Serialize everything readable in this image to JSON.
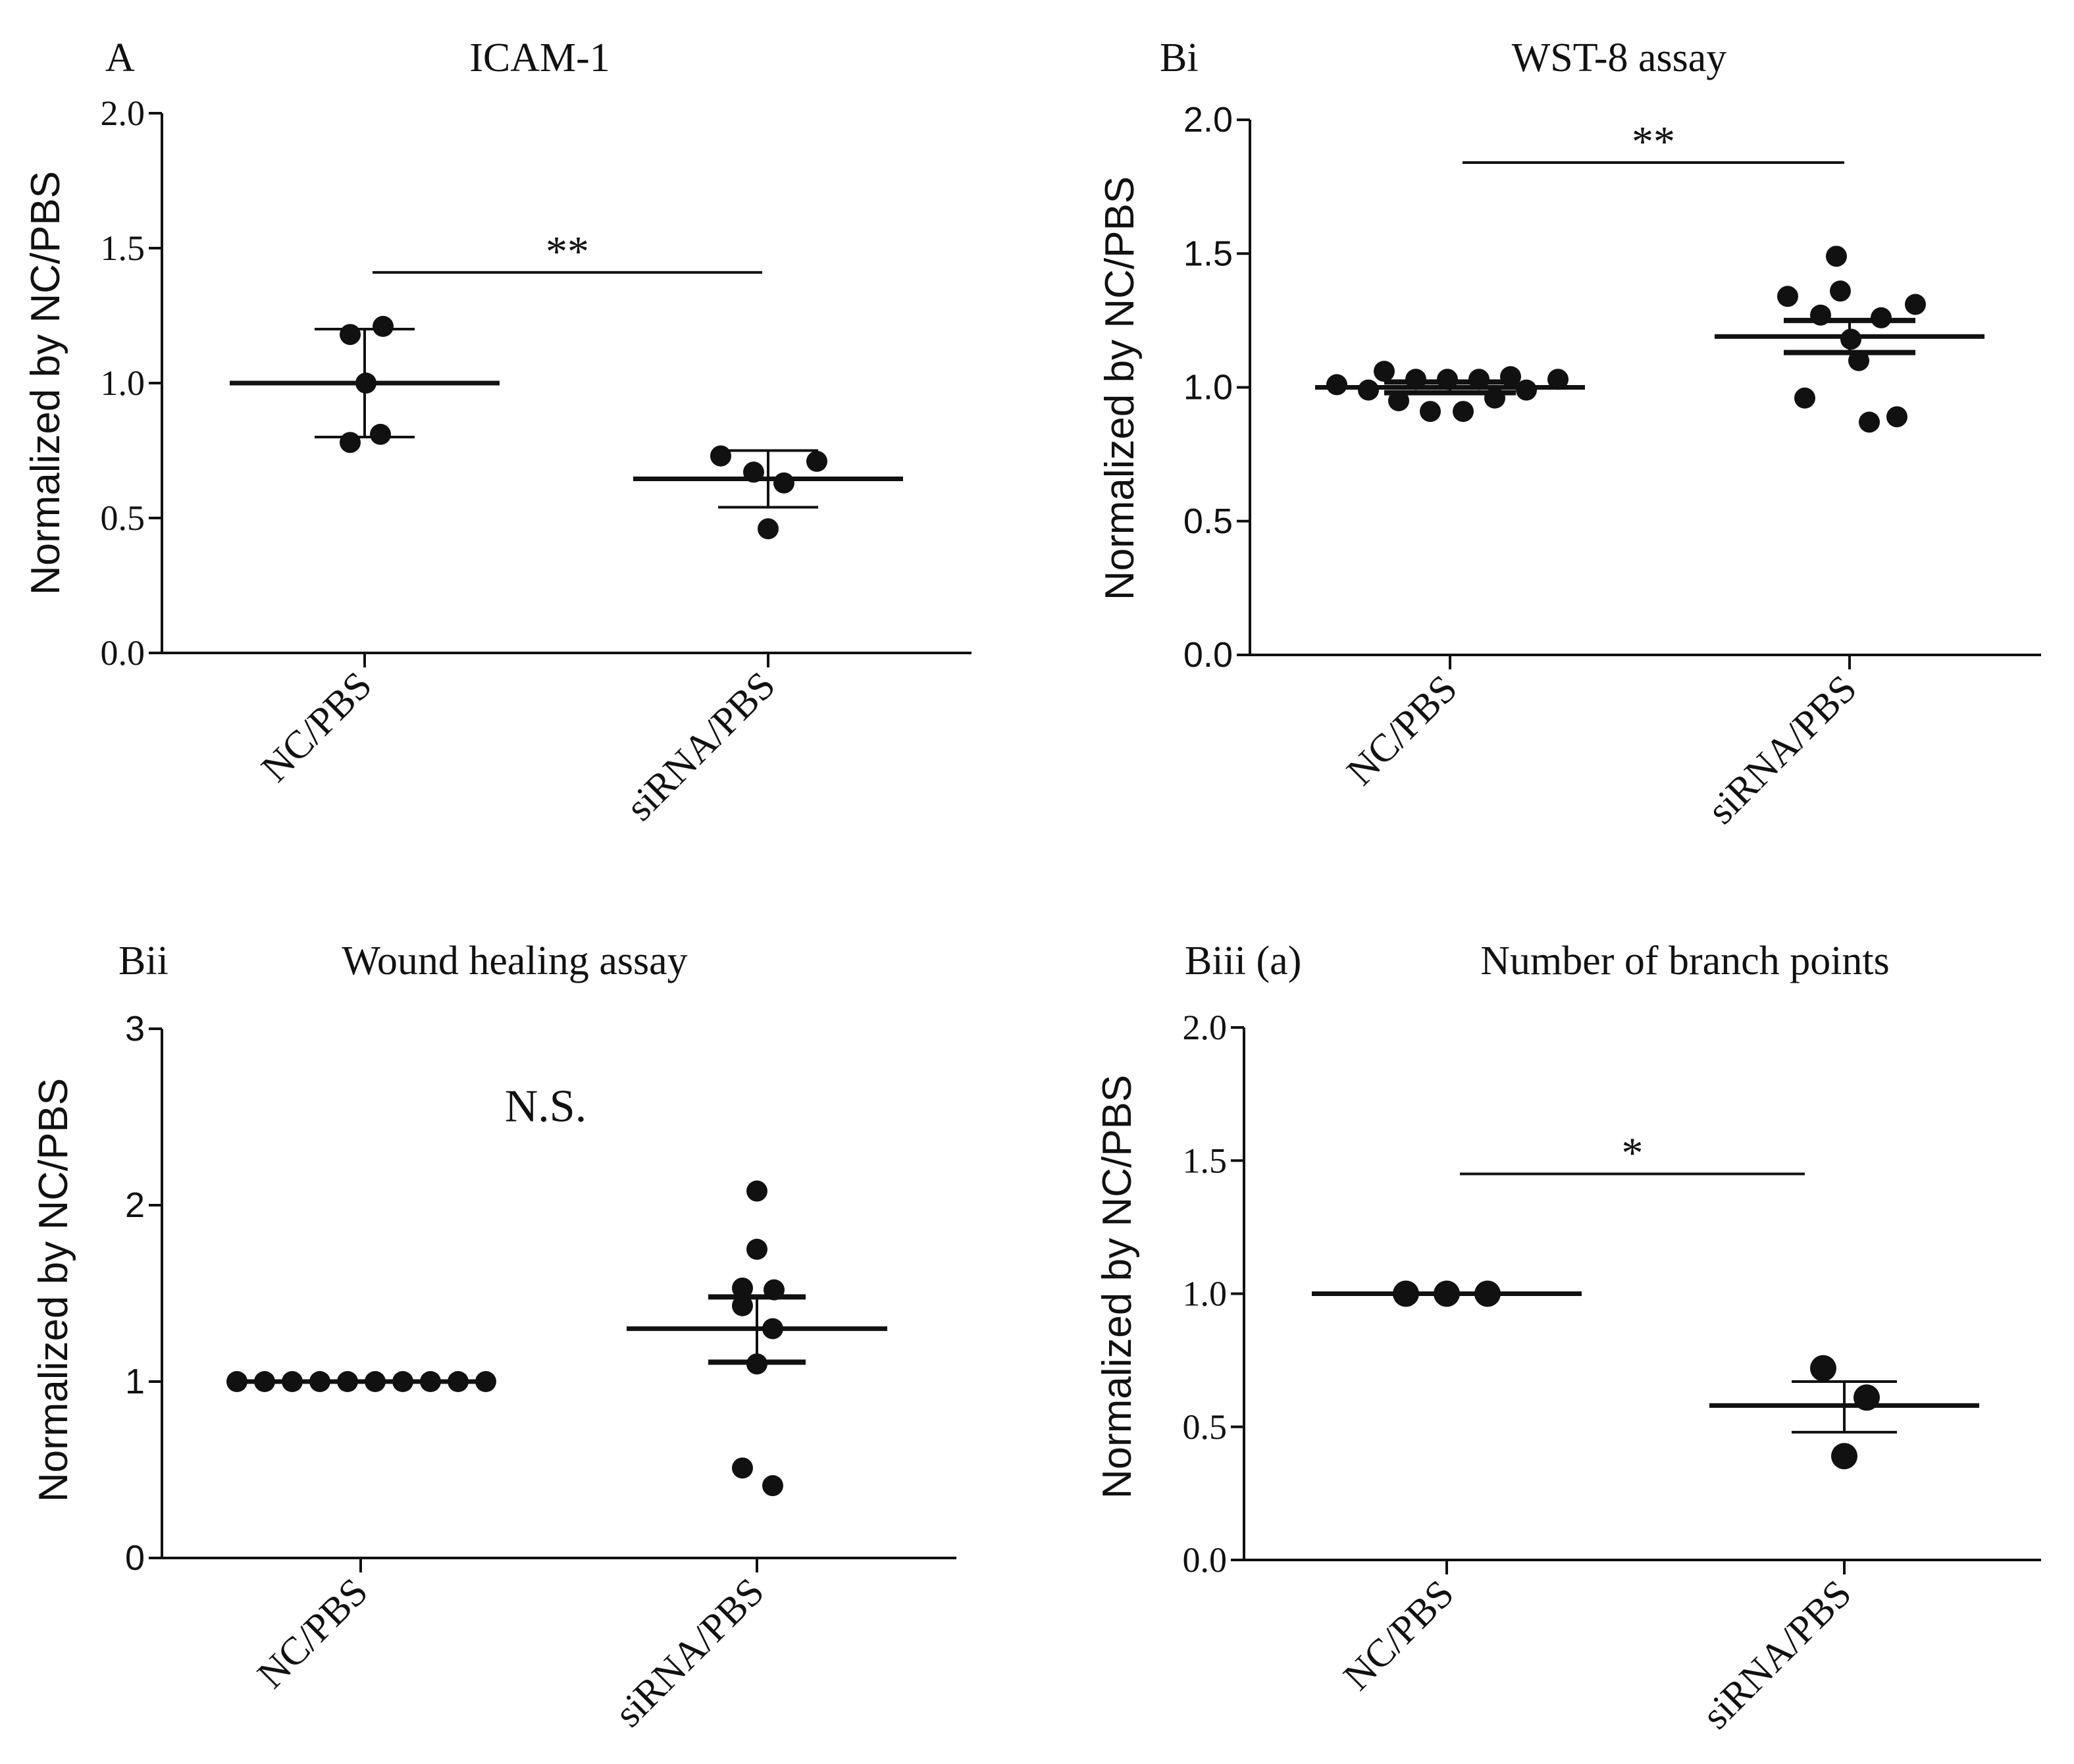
{
  "chart_data": [
    {
      "type": "scatter",
      "panel_label": "A",
      "title": "ICAM-1",
      "ylabel": "Normalized by NC/PBS",
      "ylim": [
        0,
        2.0
      ],
      "yticks": [
        0.0,
        0.5,
        1.0,
        1.5,
        2.0
      ],
      "ytick_labels": [
        "0.0",
        "0.5",
        "1.0",
        "1.5",
        "2.0"
      ],
      "tick_font": "serif",
      "categories": [
        "NC/PBS",
        "siRNA/PBS"
      ],
      "groups": [
        {
          "name": "NC/PBS",
          "points": [
            1.18,
            1.21,
            1.0,
            0.81,
            0.78
          ],
          "center": 1.0,
          "error": [
            0.8,
            1.2
          ],
          "error_kind": "SD"
        },
        {
          "name": "siRNA/PBS",
          "points": [
            0.73,
            0.67,
            0.63,
            0.71,
            0.46
          ],
          "center": 0.645,
          "error": [
            0.54,
            0.75
          ],
          "error_kind": "SD"
        }
      ],
      "significance": {
        "label": "**",
        "y": 1.41
      }
    },
    {
      "type": "scatter",
      "panel_label": "Bi",
      "title": "WST-8 assay",
      "ylabel": "Normalized by NC/PBS",
      "ylim": [
        0,
        2.0
      ],
      "yticks": [
        0.0,
        0.5,
        1.0,
        1.5,
        2.0
      ],
      "ytick_labels": [
        "0.0",
        "0.5",
        "1.0",
        "1.5",
        "2.0"
      ],
      "tick_font": "sans",
      "categories": [
        "NC/PBS",
        "siRNA/PBS"
      ],
      "groups": [
        {
          "name": "NC/PBS",
          "points": [
            1.01,
            0.99,
            1.06,
            0.95,
            1.03,
            0.91,
            1.03,
            0.91,
            1.03,
            0.96,
            1.04,
            0.99,
            1.03
          ],
          "center": 1.0,
          "error": [
            0.98,
            1.02
          ],
          "error_kind": "SEM"
        },
        {
          "name": "siRNA/PBS",
          "points": [
            1.34,
            0.96,
            1.27,
            1.49,
            1.36,
            1.18,
            1.1,
            0.87,
            1.26,
            0.89,
            1.31
          ],
          "center": 1.19,
          "error": [
            1.13,
            1.25
          ],
          "error_kind": "SEM"
        }
      ],
      "significance": {
        "label": "**",
        "y": 1.84
      }
    },
    {
      "type": "scatter",
      "panel_label": "Bii",
      "title": "Wound healing assay",
      "ylabel": "Normalized by NC/PBS",
      "ylim": [
        0,
        3
      ],
      "yticks": [
        0,
        1,
        2,
        3
      ],
      "ytick_labels": [
        "0",
        "1",
        "2",
        "3"
      ],
      "tick_font": "sans",
      "categories": [
        "NC/PBS",
        "siRNA/PBS"
      ],
      "groups": [
        {
          "name": "NC/PBS",
          "points": [
            1,
            1,
            1,
            1,
            1,
            1,
            1,
            1,
            1,
            1
          ],
          "center": 1.0,
          "error": null,
          "error_kind": "SEM"
        },
        {
          "name": "siRNA/PBS",
          "points": [
            2.08,
            1.75,
            1.53,
            1.52,
            1.43,
            1.3,
            1.1,
            0.51,
            0.41
          ],
          "center": 1.3,
          "error": [
            1.11,
            1.48
          ],
          "error_kind": "SEM"
        }
      ],
      "significance": {
        "label": "N.S.",
        "y": 2.55
      }
    },
    {
      "type": "scatter",
      "panel_label": "Biii (a)",
      "title": "Number of branch points",
      "ylabel": "Normalized by NC/PBS",
      "ylim": [
        0,
        2.0
      ],
      "yticks": [
        0.0,
        0.5,
        1.0,
        1.5,
        2.0
      ],
      "ytick_labels": [
        "0.0",
        "0.5",
        "1.0",
        "1.5",
        "2.0"
      ],
      "tick_font": "serif",
      "categories": [
        "NC/PBS",
        "siRNA/PBS"
      ],
      "groups": [
        {
          "name": "NC/PBS",
          "points": [
            1.0,
            1.0,
            1.0
          ],
          "center": 1.0,
          "error": null,
          "error_kind": "SEM"
        },
        {
          "name": "siRNA/PBS",
          "points": [
            0.72,
            0.61,
            0.39
          ],
          "center": 0.58,
          "error": [
            0.48,
            0.67
          ],
          "error_kind": "SEM"
        }
      ],
      "significance": {
        "label": "*",
        "y": 1.45
      }
    }
  ]
}
